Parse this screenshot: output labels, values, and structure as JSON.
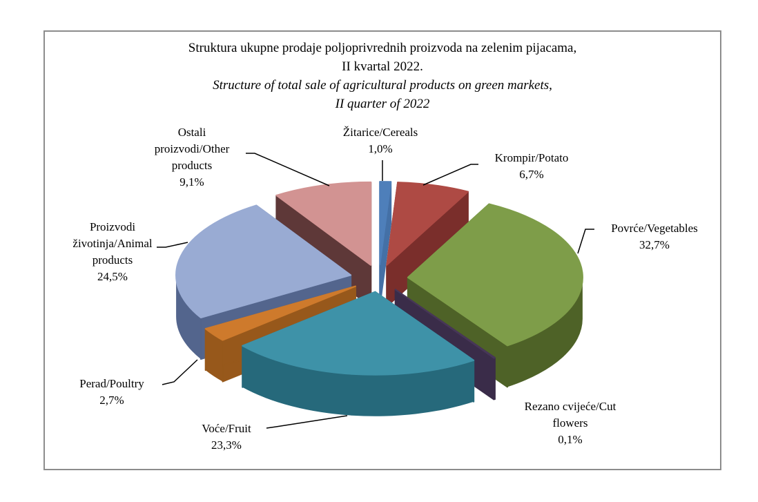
{
  "title": {
    "line1": "Struktura ukupne prodaje poljoprivrednih proizvoda na zelenim pijacama,",
    "line2": "II kvartal 2022.",
    "line3": "Structure of total sale of agricultural products on green markets,",
    "line4": "II quarter of 2022"
  },
  "chart_data": {
    "type": "pie",
    "style": "3d-exploded",
    "unit": "%",
    "title": "Struktura ukupne prodaje poljoprivrednih proizvoda na zelenim pijacama, II kvartal 2022.",
    "subtitle": "Structure of total sale of agricultural products on green markets, II quarter of 2022",
    "legend": "none",
    "label_style": "outside labels with leader lines, decimal comma",
    "start_angle_deg": 0,
    "direction": "clockwise",
    "slices": [
      {
        "id": "cereals",
        "label": "Žitarice/Cereals",
        "value": 1.0,
        "value_label": "1,0%",
        "display": "Žitarice/Cereals\n1,0%",
        "color": "#4e7fba",
        "side_color": "#2c5379",
        "face_color": "#4470a6"
      },
      {
        "id": "krompir",
        "label": "Krompir/Potato",
        "value": 6.7,
        "value_label": "6,7%",
        "display": "Krompir/Potato\n6,7%",
        "color": "#ae4a44",
        "side_color": "#7a2e2b"
      },
      {
        "id": "povrce",
        "label": "Povrće/Vegetables",
        "value": 32.7,
        "value_label": "32,7%",
        "display": "Povrće/Vegetables\n32,7%",
        "color": "#7e9d49",
        "side_color": "#4e6227"
      },
      {
        "id": "rezano",
        "label": "Rezano cvijeće/Cut flowers",
        "value": 0.1,
        "value_label": "0,1%",
        "display": "Rezano cvijeće/Cut\nflowers\n0,1%",
        "color": "#473658",
        "side_color": "#3a2c49"
      },
      {
        "id": "voce",
        "label": "Voće/Fruit",
        "value": 23.3,
        "value_label": "23,3%",
        "display": "Voće/Fruit\n23,3%",
        "color": "#3e92a8",
        "side_color": "#26697b"
      },
      {
        "id": "perad",
        "label": "Perad/Poultry",
        "value": 2.7,
        "value_label": "2,7%",
        "display": "Perad/Poultry\n2,7%",
        "color": "#ce7a2c",
        "side_color": "#97581b"
      },
      {
        "id": "proizvodi",
        "label": "Proizvodi životinja/Animal products",
        "value": 24.5,
        "value_label": "24,5%",
        "display": "Proizvodi\nživotinja/Animal\nproducts\n24,5%",
        "color": "#99abd3",
        "side_color": "#53658d"
      },
      {
        "id": "ostali",
        "label": "Ostali proizvodi/Other products",
        "value": 9.1,
        "value_label": "9,1%",
        "display": "Ostali\nproizvodi/Other\nproducts\n9,1%",
        "color": "#d29392",
        "side_color": "#5e3838"
      }
    ]
  }
}
